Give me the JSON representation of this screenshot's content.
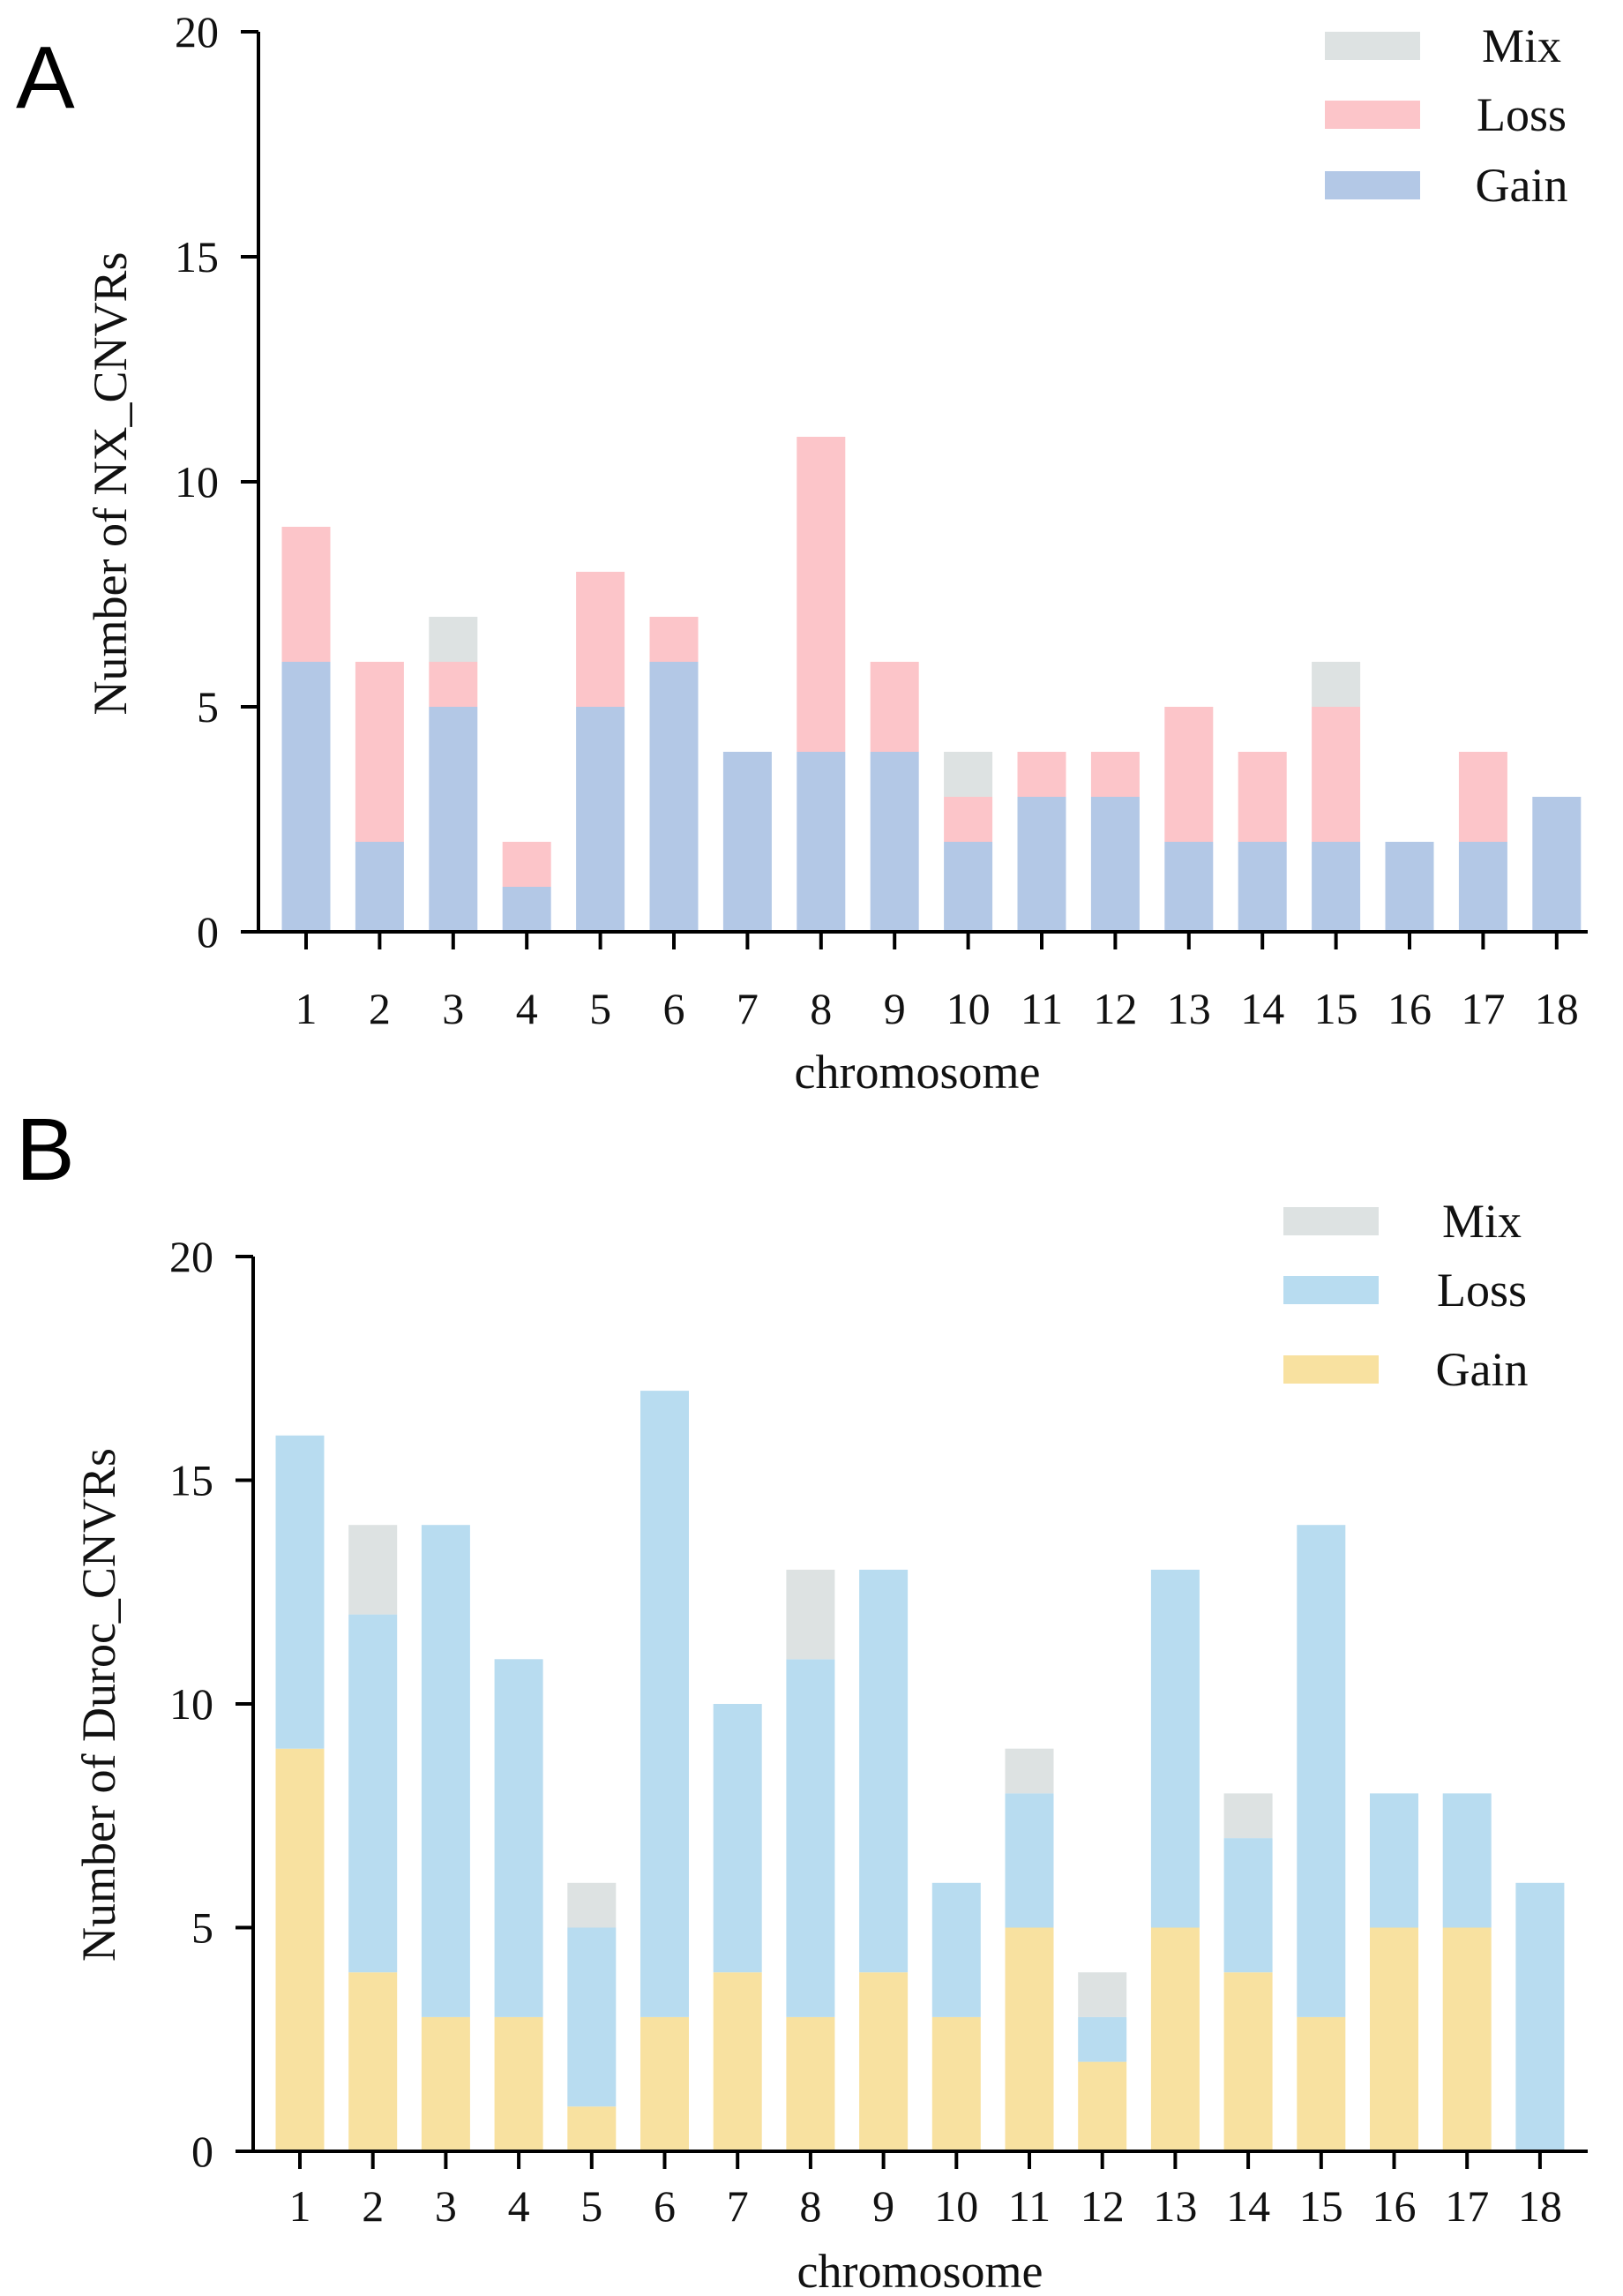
{
  "chart_data": [
    {
      "panel": "A",
      "type": "bar",
      "stacked": true,
      "xlabel": "chromosome",
      "ylabel": "Number of  NX_CNVRs",
      "ylim": [
        0,
        20
      ],
      "yticks": [
        0,
        5,
        10,
        15,
        20
      ],
      "categories": [
        "1",
        "2",
        "3",
        "4",
        "5",
        "6",
        "7",
        "8",
        "9",
        "10",
        "11",
        "12",
        "13",
        "14",
        "15",
        "16",
        "17",
        "18"
      ],
      "series": [
        {
          "name": "Gain",
          "color": "#b3c8e6",
          "values": [
            6,
            2,
            5,
            1,
            5,
            6,
            4,
            4,
            4,
            2,
            3,
            3,
            2,
            2,
            2,
            2,
            2,
            3
          ]
        },
        {
          "name": "Loss",
          "color": "#fcc5c9",
          "values": [
            3,
            4,
            1,
            1,
            3,
            1,
            0,
            7,
            2,
            1,
            1,
            1,
            3,
            2,
            3,
            0,
            2,
            0
          ]
        },
        {
          "name": "Mix",
          "color": "#dde2e2",
          "values": [
            0,
            0,
            1,
            0,
            0,
            0,
            0,
            0,
            0,
            1,
            0,
            0,
            0,
            0,
            1,
            0,
            0,
            0
          ]
        }
      ],
      "legend": {
        "position": "top-right",
        "order": [
          "Mix",
          "Loss",
          "Gain"
        ]
      }
    },
    {
      "panel": "B",
      "type": "bar",
      "stacked": true,
      "xlabel": "chromosome",
      "ylabel": "Number of  Duroc_CNVRs",
      "ylim": [
        0,
        20
      ],
      "yticks": [
        0,
        5,
        10,
        15,
        20
      ],
      "categories": [
        "1",
        "2",
        "3",
        "4",
        "5",
        "6",
        "7",
        "8",
        "9",
        "10",
        "11",
        "12",
        "13",
        "14",
        "15",
        "16",
        "17",
        "18"
      ],
      "series": [
        {
          "name": "Gain",
          "color": "#f8e1a0",
          "values": [
            9,
            4,
            3,
            3,
            1,
            3,
            4,
            3,
            4,
            3,
            5,
            2,
            5,
            4,
            3,
            5,
            5,
            0
          ]
        },
        {
          "name": "Loss",
          "color": "#b8dcf0",
          "values": [
            7,
            8,
            11,
            8,
            4,
            14,
            6,
            8,
            9,
            3,
            3,
            1,
            8,
            3,
            11,
            3,
            3,
            6
          ]
        },
        {
          "name": "Mix",
          "color": "#dde2e2",
          "values": [
            0,
            2,
            0,
            0,
            1,
            0,
            0,
            2,
            0,
            0,
            1,
            1,
            0,
            1,
            0,
            0,
            0,
            0
          ]
        }
      ],
      "legend": {
        "position": "top-right",
        "order": [
          "Mix",
          "Loss",
          "Gain"
        ]
      }
    }
  ]
}
